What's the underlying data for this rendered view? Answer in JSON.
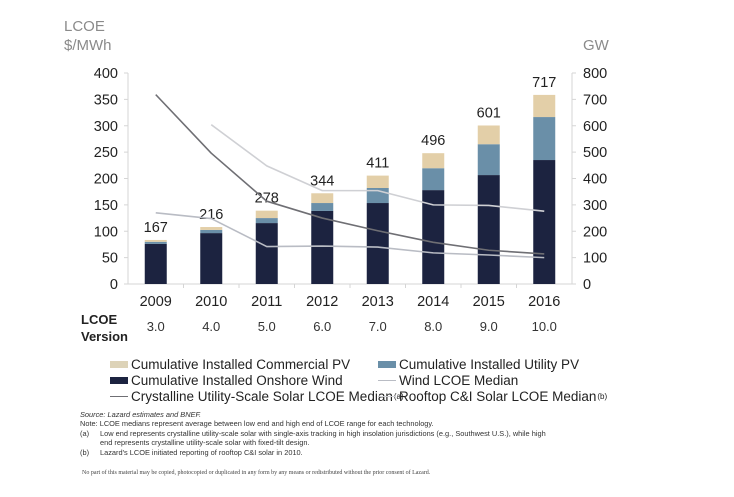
{
  "chart_data": {
    "type": "bar+line",
    "title": "",
    "categories": [
      "2009",
      "2010",
      "2011",
      "2012",
      "2013",
      "2014",
      "2015",
      "2016"
    ],
    "lcoe_versions": [
      "3.0",
      "4.0",
      "5.0",
      "6.0",
      "7.0",
      "8.0",
      "9.0",
      "10.0"
    ],
    "version_label": "LCOE Version",
    "left_axis": {
      "label_line1": "LCOE",
      "label_line2": "$/MWh",
      "ylim": [
        0,
        400
      ],
      "ticks": [
        0,
        50,
        100,
        150,
        200,
        250,
        300,
        350,
        400
      ]
    },
    "right_axis": {
      "label": "GW",
      "ylim": [
        0,
        800
      ],
      "ticks": [
        0,
        100,
        200,
        300,
        400,
        500,
        600,
        700,
        800
      ]
    },
    "bar_series": [
      {
        "name": "Cumulative Installed Onshore Wind",
        "axis": "right",
        "color": "#1c2340",
        "values": [
          152,
          193,
          231,
          277,
          307,
          356,
          413,
          470
        ]
      },
      {
        "name": "Cumulative Installed Utility PV",
        "axis": "right",
        "color": "#6a8fa8",
        "values": [
          8,
          12,
          19,
          30,
          57,
          83,
          117,
          163
        ]
      },
      {
        "name": "Cumulative Installed Commercial PV",
        "axis": "right",
        "color": "#e3cfa8",
        "values": [
          7,
          11,
          28,
          37,
          47,
          57,
          71,
          84
        ]
      }
    ],
    "bar_totals": [
      167,
      216,
      278,
      344,
      411,
      496,
      601,
      717
    ],
    "line_series": [
      {
        "name": "Crystalline Utility-Scale Solar LCOE Median",
        "superscript": "(a)",
        "axis": "left",
        "color": "#6f6f74",
        "values": [
          359,
          248,
          157,
          125,
          101,
          79,
          64,
          57
        ]
      },
      {
        "name": "Wind LCOE Median",
        "axis": "left",
        "color": "#b9bcc4",
        "values": [
          135,
          124,
          71,
          72,
          70,
          59,
          55,
          50
        ]
      },
      {
        "name": "Rooftop C&I Solar LCOE Median",
        "superscript": "(b)",
        "axis": "left",
        "color": "#cfd0d4",
        "values": [
          null,
          302,
          224,
          177,
          177,
          150,
          149,
          138
        ]
      }
    ],
    "legend_placement": "bottom",
    "grid": false
  },
  "notes": {
    "source_prefix": "Source:",
    "source_text": "Lazard estimates and BNEF.",
    "note_prefix": "Note:",
    "note_text": "LCOE medians represent average between low end and high end of LCOE range for each technology.",
    "a_tag": "(a)",
    "a_text_line1": "Low end represents crystalline utility-scale solar with single-axis tracking in high insolation jurisdictions (e.g., Southwest U.S.), while high",
    "a_text_line2": "end represents crystalline utility-scale solar with fixed-tilt design.",
    "b_tag": "(b)",
    "b_text": "Lazard's LCOE initiated reporting of rooftop C&I solar in 2010.",
    "disclaimer": "No part of this material may be copied, photocopied or duplicated in any form by any means or redistributed without the prior consent of Lazard."
  }
}
